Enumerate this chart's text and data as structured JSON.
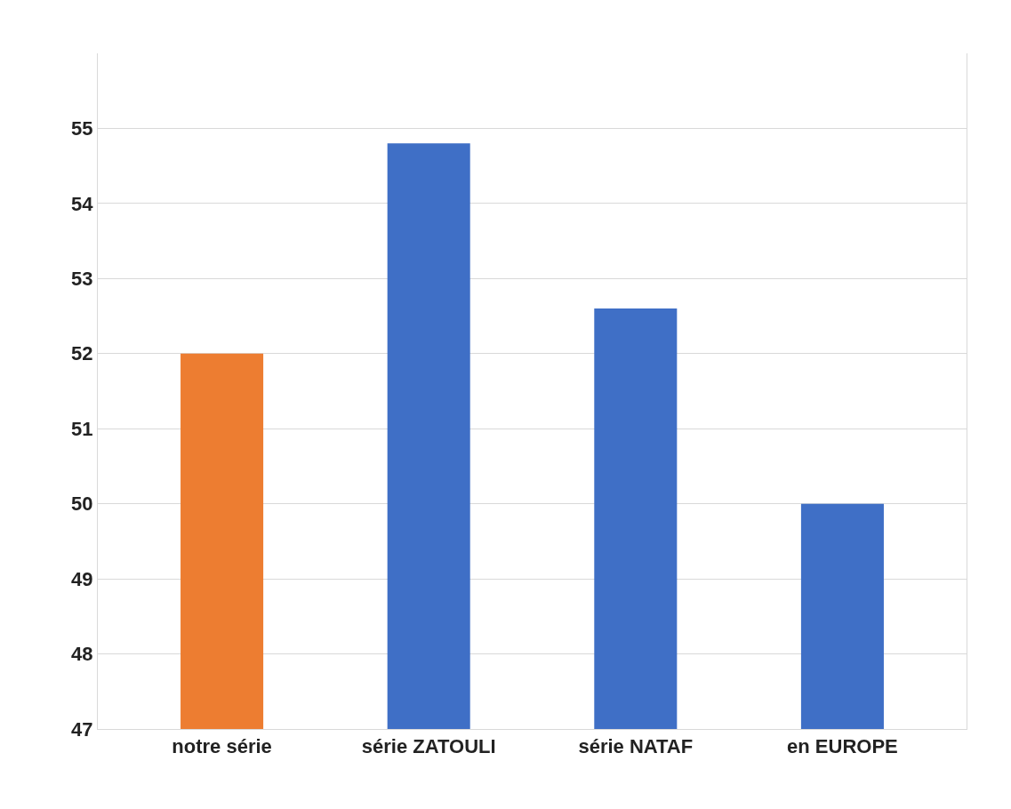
{
  "chart_data": {
    "type": "bar",
    "categories": [
      "notre série",
      "série ZATOULI",
      "série NATAF",
      "en EUROPE"
    ],
    "values": [
      52,
      54.8,
      52.6,
      50
    ],
    "colors": [
      "#ed7d31",
      "#3f6fc6",
      "#3f6fc6",
      "#3f6fc6"
    ],
    "ylim": [
      47,
      56
    ],
    "yticks": [
      47,
      48,
      49,
      50,
      51,
      52,
      53,
      54,
      55
    ],
    "grid": "y",
    "legend": false
  }
}
